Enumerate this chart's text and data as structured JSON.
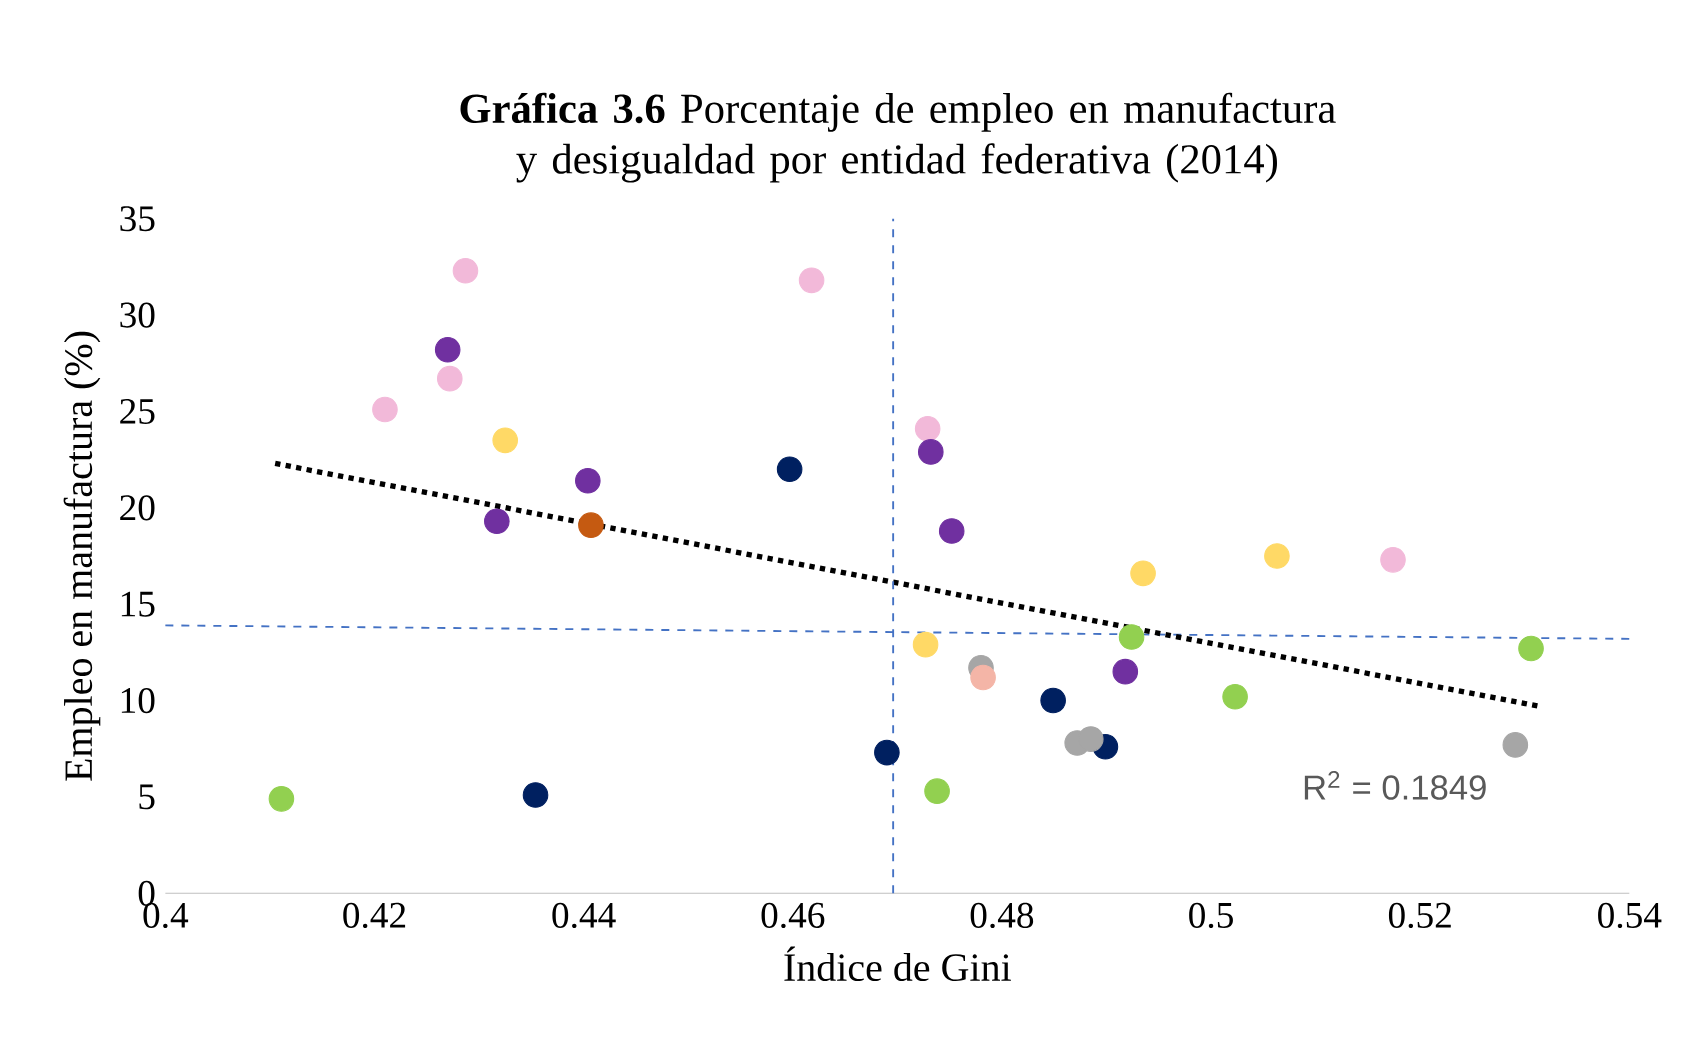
{
  "chart_data": {
    "type": "scatter",
    "title": "**Gráfica 3.6** Porcentaje de empleo en manufactura y desigualdad por entidad federativa (2014)",
    "xlabel": "Índice de Gini",
    "ylabel": "Empleo en manufactura (%)",
    "xlim": [
      0.4,
      0.54
    ],
    "ylim": [
      0,
      35
    ],
    "xticks": [
      0.4,
      0.42,
      0.44,
      0.46,
      0.48,
      0.5,
      0.52,
      0.54
    ],
    "yticks": [
      0,
      5,
      10,
      15,
      20,
      25,
      30,
      35
    ],
    "marker": "circle",
    "series": [
      {
        "x": [
          0.421,
          0.4287,
          0.4272,
          0.4618,
          0.4729,
          0.5174
        ],
        "values": [
          25.1,
          32.3,
          26.7,
          31.8,
          24.1,
          17.3
        ],
        "color": "#f2b9d9"
      },
      {
        "x": [
          0.427,
          0.4404,
          0.4317,
          0.4732,
          0.4752,
          0.4918
        ],
        "values": [
          28.2,
          21.4,
          19.3,
          22.9,
          18.8,
          11.5
        ],
        "color": "#7030a0"
      },
      {
        "x": [
          0.4325,
          0.4727,
          0.4935,
          0.5063
        ],
        "values": [
          23.5,
          12.9,
          16.6,
          17.5
        ],
        "color": "#ffd966"
      },
      {
        "x": [
          0.4597,
          0.4354,
          0.469,
          0.4849,
          0.4899
        ],
        "values": [
          22.0,
          5.1,
          7.3,
          10.0,
          7.6
        ],
        "color": "#002060"
      },
      {
        "x": [
          0.4407
        ],
        "values": [
          19.1
        ],
        "color": "#c55a11"
      },
      {
        "x": [
          0.4111,
          0.4738,
          0.4924,
          0.5023,
          0.5306
        ],
        "values": [
          4.9,
          5.3,
          13.3,
          10.2,
          12.7
        ],
        "color": "#92d050"
      },
      {
        "x": [
          0.478,
          0.4872,
          0.4885,
          0.5291
        ],
        "values": [
          11.7,
          7.8,
          8.0,
          7.7
        ],
        "color": "#a6a6a6"
      },
      {
        "x": [
          0.4782
        ],
        "values": [
          11.2
        ],
        "color": "#f4b5a7"
      },
      {
        "type": "line",
        "x": [
          0.4,
          0.54
        ],
        "values": [
          13.9,
          13.2
        ],
        "color": "#4472c4",
        "line_style": "dashed",
        "marker": "none"
      },
      {
        "type": "line",
        "x": [
          0.4105,
          0.5314
        ],
        "values": [
          22.3,
          9.7
        ],
        "color": "#000000",
        "line_style": "dotted",
        "marker": "none"
      }
    ],
    "ref_lines": [
      {
        "axis": "x",
        "value": 0.4696,
        "color": "#4472c4",
        "line_style": "dashed"
      }
    ],
    "annotations": [
      "R$^{2}$ = 0.1849"
    ]
  }
}
